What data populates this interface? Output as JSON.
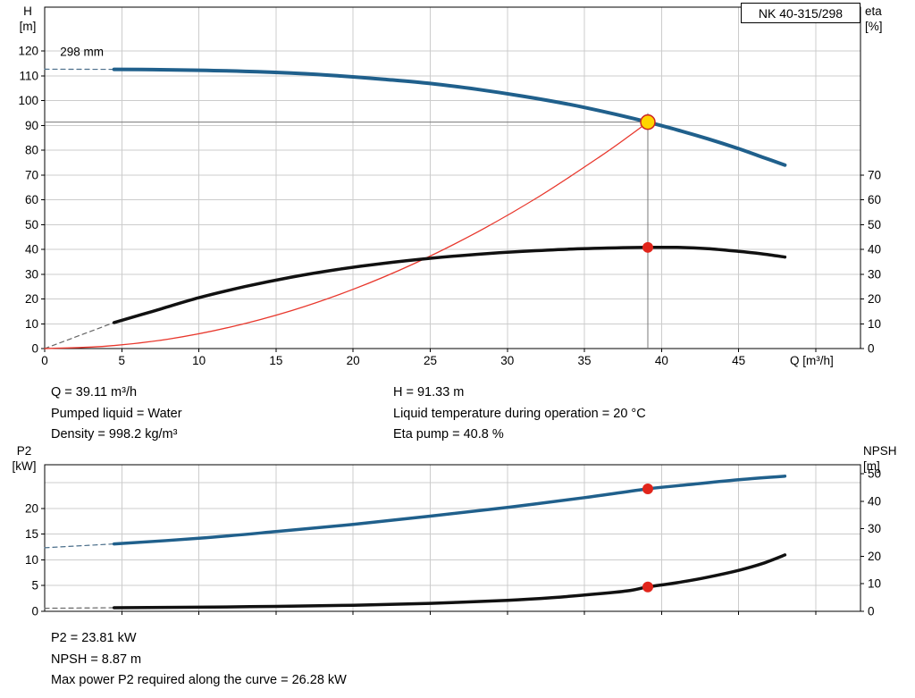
{
  "chart_data": [
    {
      "type": "line",
      "title": "NK 40-315/298",
      "x_axis": {
        "unit_label": "Q [m³/h]",
        "min": 0,
        "max": 52.9,
        "ticks": [
          0,
          5,
          10,
          15,
          20,
          25,
          30,
          35,
          40,
          45
        ],
        "grid": [
          5,
          10,
          15,
          20,
          25,
          30,
          35,
          40,
          45,
          50
        ]
      },
      "y_left": {
        "title": [
          "H",
          "[m]"
        ],
        "min": 0,
        "max": 137.7,
        "ticks": [
          0,
          10,
          20,
          30,
          40,
          50,
          60,
          70,
          80,
          90,
          100,
          110,
          120
        ],
        "grid": [
          10,
          20,
          30,
          40,
          50,
          60,
          70,
          80,
          90,
          100,
          110,
          120
        ]
      },
      "y_right": {
        "title": [
          "eta",
          "[%]"
        ],
        "min": 0,
        "max": 137.7,
        "ticks": [
          0,
          10,
          20,
          30,
          40,
          50,
          60,
          70
        ]
      },
      "annotation": {
        "text": "298 mm",
        "x": 1.0,
        "y": 118
      },
      "crosshair": {
        "x": 39.11,
        "y": 91.33,
        "color": "#7a7a7a"
      },
      "series": [
        {
          "name": "impeller-diameter-dashed-extension",
          "color": "#4a6e8a",
          "width": 1.2,
          "dash": true,
          "scale": "left",
          "points": [
            [
              0,
              112.7
            ],
            [
              4.5,
              112.6
            ]
          ]
        },
        {
          "name": "eta-dashed-extension",
          "color": "#666666",
          "width": 1.2,
          "dash": true,
          "scale": "left",
          "points": [
            [
              0,
              0
            ],
            [
              4.5,
              10.5
            ]
          ]
        },
        {
          "name": "system-resistance-curve",
          "color": "#e8372c",
          "width": 1.3,
          "dash": false,
          "scale": "left",
          "points": [
            [
              0,
              0
            ],
            [
              4,
              0.96
            ],
            [
              8,
              3.8
            ],
            [
              12,
              8.6
            ],
            [
              16,
              15.3
            ],
            [
              20,
              23.9
            ],
            [
              24,
              34.4
            ],
            [
              28,
              46.8
            ],
            [
              32,
              61.1
            ],
            [
              36,
              77.4
            ],
            [
              38,
              86.2
            ],
            [
              39.11,
              91.33
            ]
          ]
        },
        {
          "name": "eta-curve",
          "color": "#111111",
          "width": 3.5,
          "dash": false,
          "scale": "left",
          "points": [
            [
              4.5,
              10.5
            ],
            [
              7,
              15.0
            ],
            [
              10,
              20.5
            ],
            [
              13,
              25.0
            ],
            [
              16,
              28.8
            ],
            [
              19,
              31.9
            ],
            [
              22,
              34.4
            ],
            [
              25,
              36.4
            ],
            [
              28,
              38.0
            ],
            [
              31,
              39.2
            ],
            [
              34,
              40.1
            ],
            [
              37,
              40.6
            ],
            [
              39.11,
              40.8
            ],
            [
              41,
              40.8
            ],
            [
              43,
              40.3
            ],
            [
              45,
              39.2
            ],
            [
              46.5,
              38.2
            ],
            [
              48,
              36.9
            ]
          ]
        },
        {
          "name": "pump-head-curve-298mm",
          "color": "#20608c",
          "width": 4,
          "dash": false,
          "scale": "left",
          "points": [
            [
              4.5,
              112.6
            ],
            [
              7,
              112.5
            ],
            [
              10,
              112.25
            ],
            [
              13,
              111.8
            ],
            [
              16,
              111.1
            ],
            [
              19,
              110.0
            ],
            [
              22,
              108.6
            ],
            [
              25,
              106.9
            ],
            [
              28,
              104.6
            ],
            [
              31,
              101.8
            ],
            [
              34,
              98.5
            ],
            [
              37,
              94.5
            ],
            [
              39.11,
              91.33
            ],
            [
              41,
              88.2
            ],
            [
              43,
              84.6
            ],
            [
              45,
              80.6
            ],
            [
              46.5,
              77.3
            ],
            [
              48,
              74.0
            ]
          ]
        }
      ],
      "markers": [
        {
          "name": "duty-point-head",
          "x": 39.11,
          "y": 91.33,
          "scale": "left",
          "r": 8,
          "fill": "#ffd400",
          "stroke": "#cc2222",
          "stroke_width": 1.5
        },
        {
          "name": "duty-point-eta",
          "x": 39.11,
          "y": 40.8,
          "scale": "left",
          "r": 6,
          "fill": "#e1251b",
          "stroke": "none",
          "stroke_width": 0
        }
      ]
    },
    {
      "type": "line",
      "x_axis": {
        "min": 0,
        "max": 52.9,
        "ticks": [],
        "grid": [
          5,
          10,
          15,
          20,
          25,
          30,
          35,
          40,
          45,
          50
        ]
      },
      "y_left": {
        "title": [
          "P2",
          "[kW]"
        ],
        "min": 0,
        "max": 28.5,
        "ticks": [
          0,
          5,
          10,
          15,
          20
        ],
        "grid": [
          5,
          10,
          15,
          20,
          25
        ]
      },
      "y_right": {
        "title": [
          "NPSH",
          "[m]"
        ],
        "min": 0,
        "max": 53.3,
        "ticks": [
          0,
          10,
          20,
          30,
          40,
          50
        ]
      },
      "series": [
        {
          "name": "p2-dashed-extension",
          "color": "#4a6e8a",
          "width": 1.2,
          "dash": true,
          "scale": "left",
          "points": [
            [
              0,
              12.35
            ],
            [
              4.5,
              13.1
            ]
          ]
        },
        {
          "name": "npsh-dashed-extension",
          "color": "#666666",
          "width": 1.2,
          "dash": true,
          "scale": "right",
          "points": [
            [
              0,
              1.1
            ],
            [
              4.5,
              1.3
            ]
          ]
        },
        {
          "name": "p2-power-curve",
          "color": "#20608c",
          "width": 3.5,
          "dash": false,
          "scale": "left",
          "points": [
            [
              4.5,
              13.1
            ],
            [
              10,
              14.2
            ],
            [
              15,
              15.5
            ],
            [
              20,
              16.9
            ],
            [
              25,
              18.5
            ],
            [
              30,
              20.2
            ],
            [
              35,
              22.1
            ],
            [
              39.11,
              23.81
            ],
            [
              42,
              24.7
            ],
            [
              45,
              25.6
            ],
            [
              48,
              26.28
            ]
          ]
        },
        {
          "name": "npsh-curve",
          "color": "#111111",
          "width": 3.5,
          "dash": false,
          "scale": "right",
          "points": [
            [
              4.5,
              1.3
            ],
            [
              10,
              1.5
            ],
            [
              15,
              1.8
            ],
            [
              20,
              2.2
            ],
            [
              25,
              2.9
            ],
            [
              30,
              4.0
            ],
            [
              33,
              5.0
            ],
            [
              36,
              6.4
            ],
            [
              38,
              7.6
            ],
            [
              39.11,
              8.87
            ],
            [
              41,
              10.4
            ],
            [
              43,
              12.4
            ],
            [
              45,
              14.9
            ],
            [
              46.5,
              17.3
            ],
            [
              48,
              20.5
            ]
          ]
        }
      ],
      "markers": [
        {
          "name": "duty-point-p2",
          "x": 39.11,
          "y": 23.81,
          "scale": "left",
          "r": 6,
          "fill": "#e1251b",
          "stroke": "none",
          "stroke_width": 0
        },
        {
          "name": "duty-point-npsh",
          "x": 39.11,
          "y": 8.87,
          "scale": "right",
          "r": 6,
          "fill": "#e1251b",
          "stroke": "none",
          "stroke_width": 0
        }
      ]
    }
  ],
  "info_top": {
    "left": [
      "Q = 39.11 m³/h",
      "Pumped liquid = Water",
      "Density = 998.2 kg/m³"
    ],
    "right": [
      "H = 91.33 m",
      "Liquid temperature during operation = 20 °C",
      "Eta pump = 40.8 %"
    ]
  },
  "info_bottom": [
    "P2 = 23.81 kW",
    "NPSH = 8.87 m",
    "Max power P2 required along the curve = 26.28 kW"
  ],
  "colors": {
    "curve_blue": "#20608c",
    "curve_black": "#111111",
    "system_red": "#e8372c",
    "duty_yellow": "#ffd400",
    "dot_red": "#e1251b",
    "grid_gray": "#cccccc"
  }
}
